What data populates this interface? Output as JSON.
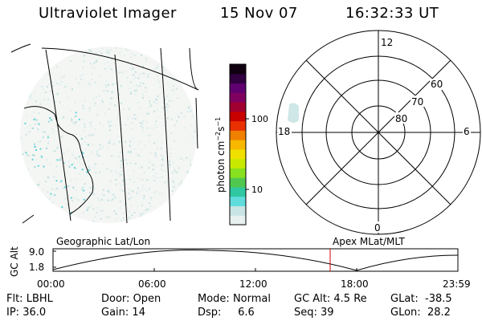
{
  "header": {
    "title": "Ultraviolet Imager",
    "date": "15 Nov 07",
    "time": "16:32:33 UT"
  },
  "colorbar": {
    "label": "photon cm⁻²s⁻¹",
    "label_main": "photon cm",
    "label_sup1": "−2",
    "label_s": "s",
    "label_sup2": "−1",
    "ticks": [
      "100",
      "10"
    ],
    "colors": [
      "#e8f0f0",
      "#c8e4e4",
      "#60dcdc",
      "#30c8a0",
      "#50c850",
      "#88e020",
      "#c8e800",
      "#f0e000",
      "#f8b800",
      "#f08000",
      "#e83000",
      "#c80000",
      "#a00030",
      "#800060",
      "#600070",
      "#300040",
      "#100010"
    ]
  },
  "polar_plot": {
    "lat_labels": [
      "60",
      "70",
      "80"
    ],
    "mlt_labels": {
      "top": "12",
      "left": "18",
      "right": "6",
      "bottom": "0"
    }
  },
  "map_labels": {
    "left": "Geographic Lat/Lon",
    "right": "Apex  MLat/MLT"
  },
  "altitude_plot": {
    "ylabel": "GC Alt",
    "y_ticks": [
      "9.0",
      "1.8"
    ],
    "x_ticks": [
      "00:00",
      "06:00",
      "12:00",
      "18:00",
      "23:59"
    ],
    "marker_color": "#cc0000"
  },
  "info": {
    "row1": [
      {
        "label": "Flt:",
        "value": "LBHL"
      },
      {
        "label": "Door:",
        "value": "Open"
      },
      {
        "label": "Mode:",
        "value": "Normal"
      },
      {
        "label": "GC Alt:",
        "value": "4.5 Re"
      },
      {
        "label": "GLat:",
        "value": "-38.5"
      }
    ],
    "row2": [
      {
        "label": "IP:",
        "value": "36.0"
      },
      {
        "label": "Gain:",
        "value": "14"
      },
      {
        "label": "Dsp:",
        "value": "6.6"
      },
      {
        "label": "Seq:",
        "value": "39"
      },
      {
        "label": "GLon:",
        "value": "28.2"
      }
    ]
  }
}
